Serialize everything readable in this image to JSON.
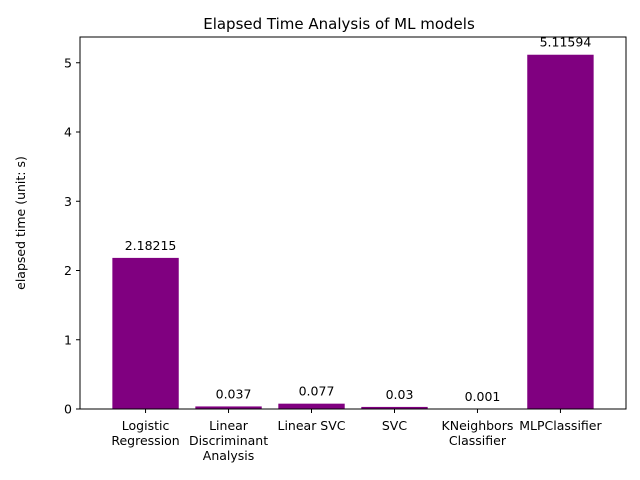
{
  "chart_data": {
    "type": "bar",
    "title": "Elapsed Time Analysis of ML models",
    "xlabel": "",
    "ylabel": "elapsed time (unit: s)",
    "categories": [
      [
        "Logistic",
        "Regression"
      ],
      [
        "Linear",
        "Discriminant",
        "Analysis"
      ],
      [
        "Linear SVC"
      ],
      [
        "SVC"
      ],
      [
        "KNeighbors",
        "Classifier"
      ],
      [
        "MLPClassifier"
      ]
    ],
    "values": [
      2.18215,
      0.037,
      0.077,
      0.03,
      0.001,
      5.11594
    ],
    "value_labels": [
      "2.18215",
      "0.037",
      "0.077",
      "0.03",
      "0.001",
      "5.11594"
    ],
    "yticks": [
      0,
      1,
      2,
      3,
      4,
      5
    ],
    "ylim": [
      0,
      5.372
    ],
    "bar_color": "#800080",
    "grid": false
  }
}
